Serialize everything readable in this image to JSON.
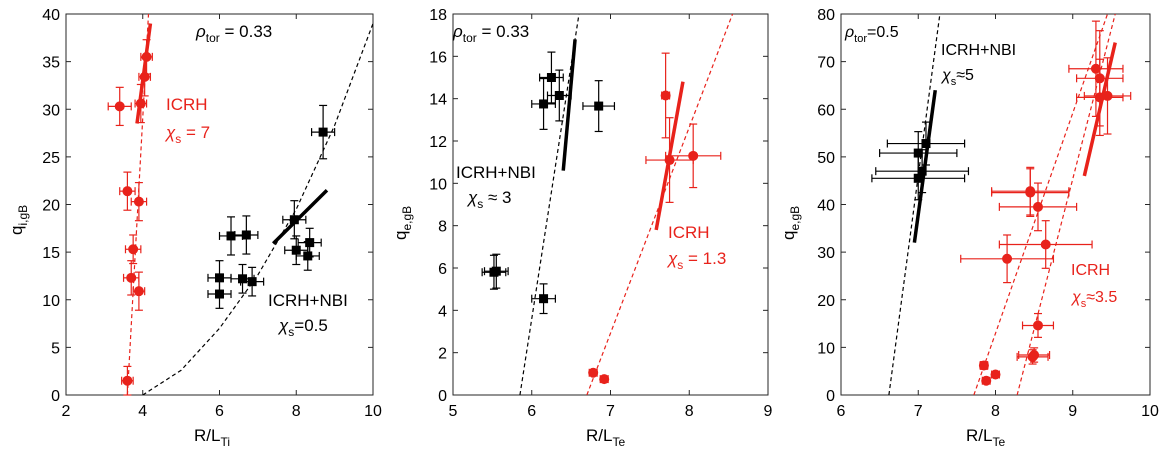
{
  "colors": {
    "black": "#000000",
    "red": "#e8221b",
    "axis": "#262626"
  },
  "chart_data": [
    {
      "type": "scatter",
      "title": "",
      "xlabel_main": "R/L",
      "xlabel_sub": "Ti",
      "ylabel_main": "q",
      "ylabel_sub": "i,gB",
      "xlim": [
        2,
        10
      ],
      "ylim": [
        0,
        40
      ],
      "xticks": [
        2,
        4,
        6,
        8,
        10
      ],
      "yticks": [
        0,
        5,
        10,
        15,
        20,
        25,
        30,
        35,
        40
      ],
      "rho_label": "ρ",
      "rho_sub": "tor",
      "rho_value": " = 0.33",
      "series": [
        {
          "name": "ICRH",
          "color": "red",
          "marker": "circle",
          "points": [
            {
              "x": 3.4,
              "y": 30.3,
              "xerr": 0.3,
              "yerr": 2.0
            },
            {
              "x": 3.95,
              "y": 30.6,
              "xerr": 0.15,
              "yerr": 2.0
            },
            {
              "x": 4.05,
              "y": 33.4,
              "xerr": 0.15,
              "yerr": 2.0
            },
            {
              "x": 4.1,
              "y": 35.5,
              "xerr": 0.15,
              "yerr": 1.8
            },
            {
              "x": 3.6,
              "y": 21.4,
              "xerr": 0.2,
              "yerr": 2.0
            },
            {
              "x": 3.9,
              "y": 20.3,
              "xerr": 0.2,
              "yerr": 2.0
            },
            {
              "x": 3.75,
              "y": 15.3,
              "xerr": 0.2,
              "yerr": 1.5
            },
            {
              "x": 3.7,
              "y": 12.3,
              "xerr": 0.2,
              "yerr": 1.8
            },
            {
              "x": 3.9,
              "y": 10.9,
              "xerr": 0.15,
              "yerr": 2.0
            },
            {
              "x": 3.6,
              "y": 1.5,
              "xerr": 0.15,
              "yerr": 1.5
            }
          ],
          "fit_line": {
            "x": [
              3.6,
              4.15
            ],
            "y": [
              0,
              40
            ]
          },
          "slope_line": {
            "x": [
              3.85,
              4.2
            ],
            "y": [
              28.5,
              39
            ]
          },
          "label": "ICRH",
          "chi_label": "χ",
          "chi_sub": "s",
          "chi_value": " = 7"
        },
        {
          "name": "ICRH+NBI",
          "color": "black",
          "marker": "square",
          "points": [
            {
              "x": 6.0,
              "y": 12.3,
              "xerr": 0.3,
              "yerr": 1.8
            },
            {
              "x": 6.0,
              "y": 10.6,
              "xerr": 0.3,
              "yerr": 1.5
            },
            {
              "x": 6.3,
              "y": 16.7,
              "xerr": 0.3,
              "yerr": 2.0
            },
            {
              "x": 6.7,
              "y": 16.8,
              "xerr": 0.3,
              "yerr": 2.0
            },
            {
              "x": 6.6,
              "y": 12.2,
              "xerr": 0.3,
              "yerr": 1.5
            },
            {
              "x": 6.85,
              "y": 11.9,
              "xerr": 0.3,
              "yerr": 1.5
            },
            {
              "x": 7.95,
              "y": 18.4,
              "xerr": 0.3,
              "yerr": 2.0
            },
            {
              "x": 8.0,
              "y": 15.2,
              "xerr": 0.3,
              "yerr": 1.5
            },
            {
              "x": 8.3,
              "y": 14.6,
              "xerr": 0.3,
              "yerr": 1.5
            },
            {
              "x": 8.35,
              "y": 16.0,
              "xerr": 0.3,
              "yerr": 1.5
            },
            {
              "x": 8.7,
              "y": 27.6,
              "xerr": 0.3,
              "yerr": 2.8
            }
          ],
          "fit_curve": {
            "x": [
              4.0,
              5.0,
              6.0,
              7.0,
              8.0,
              9.0,
              10.0
            ],
            "y": [
              0,
              2.6,
              7.0,
              12.6,
              19.5,
              28.3,
              39.0
            ]
          },
          "slope_line": {
            "x": [
              7.4,
              8.8
            ],
            "y": [
              15.9,
              21.5
            ]
          },
          "label": "ICRH+NBI",
          "chi_label": "χ",
          "chi_sub": "s",
          "chi_value": "=0.5"
        }
      ]
    },
    {
      "type": "scatter",
      "title": "",
      "xlabel_main": "R/L",
      "xlabel_sub": "Te",
      "ylabel_main": "q",
      "ylabel_sub": "e,gB",
      "xlim": [
        5,
        9
      ],
      "ylim": [
        0,
        18
      ],
      "xticks": [
        5,
        6,
        7,
        8,
        9
      ],
      "yticks": [
        0,
        2,
        4,
        6,
        8,
        10,
        12,
        14,
        16,
        18
      ],
      "rho_label": "ρ",
      "rho_sub": "tor",
      "rho_value": " = 0.33",
      "series": [
        {
          "name": "ICRH+NBI",
          "color": "black",
          "marker": "square",
          "points": [
            {
              "x": 6.15,
              "y": 13.75,
              "xerr": 0.15,
              "yerr": 1.2
            },
            {
              "x": 6.25,
              "y": 15.0,
              "xerr": 0.15,
              "yerr": 1.2
            },
            {
              "x": 6.35,
              "y": 14.15,
              "xerr": 0.15,
              "yerr": 1.2
            },
            {
              "x": 6.85,
              "y": 13.65,
              "xerr": 0.2,
              "yerr": 1.2
            },
            {
              "x": 5.55,
              "y": 5.85,
              "xerr": 0.15,
              "yerr": 0.8
            },
            {
              "x": 5.52,
              "y": 5.8,
              "xerr": 0.15,
              "yerr": 0.8
            },
            {
              "x": 6.15,
              "y": 4.55,
              "xerr": 0.15,
              "yerr": 0.7
            }
          ],
          "fit_line": {
            "x": [
              5.85,
              6.6
            ],
            "y": [
              0,
              18
            ]
          },
          "slope_line": {
            "x": [
              6.4,
              6.55
            ],
            "y": [
              10.6,
              16.8
            ]
          },
          "label": "ICRH+NBI",
          "chi_label": "χ",
          "chi_sub": "s",
          "chi_value": " ≈ 3"
        },
        {
          "name": "ICRH",
          "color": "red",
          "marker": "circle",
          "points": [
            {
              "x": 7.7,
              "y": 14.15,
              "xerr": 0.05,
              "yerr": 2.0
            },
            {
              "x": 7.75,
              "y": 11.1,
              "xerr": 0.3,
              "yerr": 2.0
            },
            {
              "x": 8.05,
              "y": 11.3,
              "xerr": 0.35,
              "yerr": 1.5
            },
            {
              "x": 6.78,
              "y": 1.05,
              "xerr": 0.05,
              "yerr": 0.1
            },
            {
              "x": 6.92,
              "y": 0.75,
              "xerr": 0.05,
              "yerr": 0.1
            }
          ],
          "fit_line": {
            "x": [
              6.7,
              8.55
            ],
            "y": [
              0,
              18
            ]
          },
          "slope_line": {
            "x": [
              7.58,
              7.92
            ],
            "y": [
              7.8,
              14.8
            ]
          },
          "label": "ICRH",
          "chi_label": "χ",
          "chi_sub": "s",
          "chi_value": " = 1.3"
        }
      ]
    },
    {
      "type": "scatter",
      "title": "",
      "xlabel_main": "R/L",
      "xlabel_sub": "Te",
      "ylabel_main": "q",
      "ylabel_sub": "e,gB",
      "xlim": [
        6,
        10
      ],
      "ylim": [
        0,
        80
      ],
      "xticks": [
        6,
        7,
        8,
        9,
        10
      ],
      "yticks": [
        0,
        10,
        20,
        30,
        40,
        50,
        60,
        70,
        80
      ],
      "rho_label": "ρ",
      "rho_sub": "tor",
      "rho_value": "=0.5",
      "series": [
        {
          "name": "ICRH+NBI",
          "color": "black",
          "marker": "square",
          "points": [
            {
              "x": 7.0,
              "y": 50.8,
              "xerr": 0.5,
              "yerr": 4.5
            },
            {
              "x": 7.1,
              "y": 52.8,
              "xerr": 0.5,
              "yerr": 4.5
            },
            {
              "x": 7.05,
              "y": 47.0,
              "xerr": 0.6,
              "yerr": 4.5
            },
            {
              "x": 7.0,
              "y": 45.5,
              "xerr": 0.6,
              "yerr": 4.5
            }
          ],
          "fit_line": {
            "x": [
              6.62,
              7.28
            ],
            "y": [
              0,
              80
            ]
          },
          "slope_line": {
            "x": [
              6.95,
              7.22
            ],
            "y": [
              32,
              64
            ]
          },
          "label": "ICRH+NBI",
          "chi_label": "χ",
          "chi_sub": "s",
          "chi_value": "≈5"
        },
        {
          "name": "ICRH",
          "color": "red",
          "marker": "circle",
          "points": [
            {
              "x": 9.3,
              "y": 68.5,
              "xerr": 0.35,
              "yerr": 10
            },
            {
              "x": 9.35,
              "y": 66.5,
              "xerr": 0.3,
              "yerr": 10
            },
            {
              "x": 9.35,
              "y": 62.5,
              "xerr": 0.3,
              "yerr": 8
            },
            {
              "x": 9.45,
              "y": 62.8,
              "xerr": 0.3,
              "yerr": 8
            },
            {
              "x": 8.45,
              "y": 42.8,
              "xerr": 0.5,
              "yerr": 5
            },
            {
              "x": 8.45,
              "y": 42.5,
              "xerr": 0.5,
              "yerr": 5
            },
            {
              "x": 8.55,
              "y": 39.5,
              "xerr": 0.5,
              "yerr": 5
            },
            {
              "x": 8.65,
              "y": 31.6,
              "xerr": 0.6,
              "yerr": 5
            },
            {
              "x": 8.15,
              "y": 28.6,
              "xerr": 0.6,
              "yerr": 5
            },
            {
              "x": 8.55,
              "y": 14.6,
              "xerr": 0.2,
              "yerr": 2.5
            },
            {
              "x": 8.5,
              "y": 8.4,
              "xerr": 0.2,
              "yerr": 1.5
            },
            {
              "x": 8.48,
              "y": 8.0,
              "xerr": 0.2,
              "yerr": 1.5
            },
            {
              "x": 7.85,
              "y": 6.2,
              "xerr": 0.05,
              "yerr": 0.8
            },
            {
              "x": 7.88,
              "y": 3.0,
              "xerr": 0.05,
              "yerr": 0.5
            },
            {
              "x": 8.0,
              "y": 4.3,
              "xerr": 0.05,
              "yerr": 0.6
            }
          ],
          "fit_line": {
            "x": [
              7.72,
              9.45
            ],
            "y": [
              0,
              80
            ]
          },
          "fit_line2": {
            "x": [
              8.28,
              9.55
            ],
            "y": [
              0,
              80
            ]
          },
          "slope_line": {
            "x": [
              9.15,
              9.55
            ],
            "y": [
              46,
              74
            ]
          },
          "label": "ICRH",
          "chi_label": "χ",
          "chi_sub": "s",
          "chi_value": "≈3.5"
        }
      ]
    }
  ]
}
